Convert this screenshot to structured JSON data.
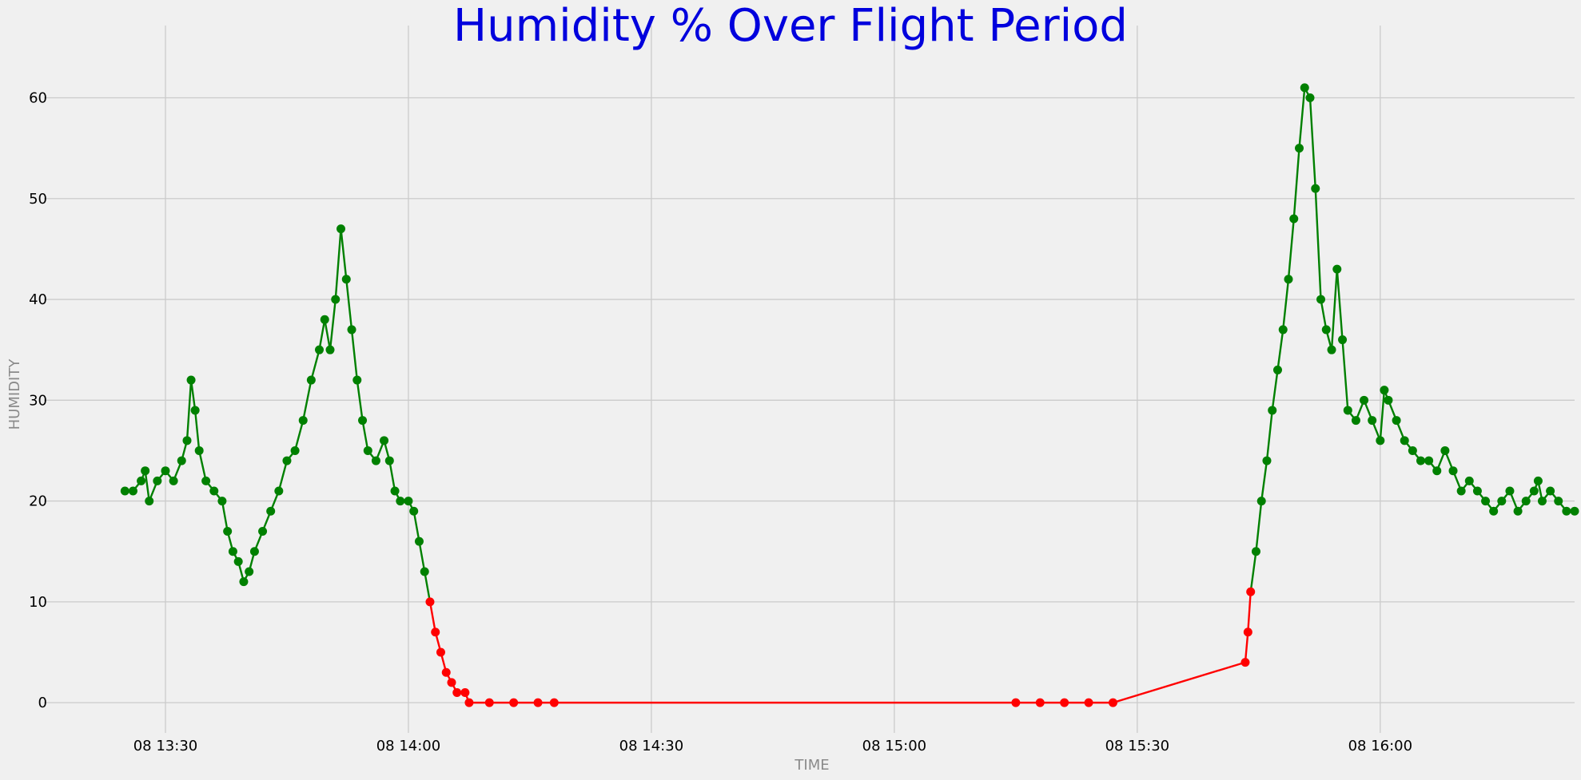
{
  "chart_data": {
    "type": "line",
    "title": "Humidity % Over Flight Period",
    "xlabel": "TIME",
    "ylabel": "HUMIDITY",
    "x_unit": "minutes",
    "xlim": [
      "08 13:15",
      "08 16:24"
    ],
    "ylim": [
      -3,
      64
    ],
    "x_ticks": [
      "08 13:30",
      "08 14:00",
      "08 14:30",
      "08 15:00",
      "08 15:30",
      "08 16:00"
    ],
    "y_ticks": [
      0,
      10,
      20,
      30,
      40,
      50,
      60
    ],
    "grid": true,
    "marker_colors": {
      "high": "#008000",
      "low": "#ff0000"
    },
    "line_color": "#ff0000",
    "low_threshold": 12,
    "series": [
      {
        "points": [
          [
            "08 13:25:00",
            21
          ],
          [
            "08 13:26:00",
            21
          ],
          [
            "08 13:27:00",
            22
          ],
          [
            "08 13:27:30",
            23
          ],
          [
            "08 13:28:00",
            20
          ],
          [
            "08 13:29:00",
            22
          ],
          [
            "08 13:30:00",
            23
          ],
          [
            "08 13:31:00",
            22
          ],
          [
            "08 13:32:00",
            24
          ],
          [
            "08 13:32:40",
            26
          ],
          [
            "08 13:33:10",
            32
          ],
          [
            "08 13:33:40",
            29
          ],
          [
            "08 13:34:10",
            25
          ],
          [
            "08 13:35:00",
            22
          ],
          [
            "08 13:36:00",
            21
          ],
          [
            "08 13:37:00",
            20
          ],
          [
            "08 13:37:40",
            17
          ],
          [
            "08 13:38:20",
            15
          ],
          [
            "08 13:39:00",
            14
          ],
          [
            "08 13:39:40",
            12
          ],
          [
            "08 13:40:20",
            13
          ],
          [
            "08 13:41:00",
            15
          ],
          [
            "08 13:42:00",
            17
          ],
          [
            "08 13:43:00",
            19
          ],
          [
            "08 13:44:00",
            21
          ],
          [
            "08 13:45:00",
            24
          ],
          [
            "08 13:46:00",
            25
          ],
          [
            "08 13:47:00",
            28
          ],
          [
            "08 13:48:00",
            32
          ],
          [
            "08 13:49:00",
            35
          ],
          [
            "08 13:49:40",
            38
          ],
          [
            "08 13:50:20",
            35
          ],
          [
            "08 13:51:00",
            40
          ],
          [
            "08 13:51:40",
            47
          ],
          [
            "08 13:52:20",
            42
          ],
          [
            "08 13:53:00",
            37
          ],
          [
            "08 13:53:40",
            32
          ],
          [
            "08 13:54:20",
            28
          ],
          [
            "08 13:55:00",
            25
          ],
          [
            "08 13:56:00",
            24
          ],
          [
            "08 13:57:00",
            26
          ],
          [
            "08 13:57:40",
            24
          ],
          [
            "08 13:58:20",
            21
          ],
          [
            "08 13:59:00",
            20
          ],
          [
            "08 14:00:00",
            20
          ],
          [
            "08 14:00:40",
            19
          ],
          [
            "08 14:01:20",
            16
          ],
          [
            "08 14:02:00",
            13
          ],
          [
            "08 14:02:40",
            10
          ],
          [
            "08 14:03:20",
            7
          ],
          [
            "08 14:04:00",
            5
          ],
          [
            "08 14:04:40",
            3
          ],
          [
            "08 14:05:20",
            2
          ],
          [
            "08 14:06:00",
            1
          ],
          [
            "08 14:07:00",
            1
          ],
          [
            "08 14:07:30",
            0
          ],
          [
            "08 14:10:00",
            0
          ],
          [
            "08 14:13:00",
            0
          ],
          [
            "08 14:16:00",
            0
          ],
          [
            "08 14:18:00",
            0
          ],
          [
            "08 15:15:00",
            0
          ],
          [
            "08 15:18:00",
            0
          ],
          [
            "08 15:21:00",
            0
          ],
          [
            "08 15:24:00",
            0
          ],
          [
            "08 15:27:00",
            0
          ],
          [
            "08 15:43:20",
            4
          ],
          [
            "08 15:43:40",
            7
          ],
          [
            "08 15:44:00",
            11
          ],
          [
            "08 15:44:40",
            15
          ],
          [
            "08 15:45:20",
            20
          ],
          [
            "08 15:46:00",
            24
          ],
          [
            "08 15:46:40",
            29
          ],
          [
            "08 15:47:20",
            33
          ],
          [
            "08 15:48:00",
            37
          ],
          [
            "08 15:48:40",
            42
          ],
          [
            "08 15:49:20",
            48
          ],
          [
            "08 15:50:00",
            55
          ],
          [
            "08 15:50:40",
            61
          ],
          [
            "08 15:51:20",
            60
          ],
          [
            "08 15:52:00",
            51
          ],
          [
            "08 15:52:40",
            40
          ],
          [
            "08 15:53:20",
            37
          ],
          [
            "08 15:54:00",
            35
          ],
          [
            "08 15:54:40",
            43
          ],
          [
            "08 15:55:20",
            36
          ],
          [
            "08 15:56:00",
            29
          ],
          [
            "08 15:57:00",
            28
          ],
          [
            "08 15:58:00",
            30
          ],
          [
            "08 15:59:00",
            28
          ],
          [
            "08 16:00:00",
            26
          ],
          [
            "08 16:00:30",
            31
          ],
          [
            "08 16:01:00",
            30
          ],
          [
            "08 16:02:00",
            28
          ],
          [
            "08 16:03:00",
            26
          ],
          [
            "08 16:04:00",
            25
          ],
          [
            "08 16:05:00",
            24
          ],
          [
            "08 16:06:00",
            24
          ],
          [
            "08 16:07:00",
            23
          ],
          [
            "08 16:08:00",
            25
          ],
          [
            "08 16:09:00",
            23
          ],
          [
            "08 16:10:00",
            21
          ],
          [
            "08 16:11:00",
            22
          ],
          [
            "08 16:12:00",
            21
          ],
          [
            "08 16:13:00",
            20
          ],
          [
            "08 16:14:00",
            19
          ],
          [
            "08 16:15:00",
            20
          ],
          [
            "08 16:16:00",
            21
          ],
          [
            "08 16:17:00",
            19
          ],
          [
            "08 16:18:00",
            20
          ],
          [
            "08 16:19:00",
            21
          ],
          [
            "08 16:19:30",
            22
          ],
          [
            "08 16:20:00",
            20
          ],
          [
            "08 16:21:00",
            21
          ],
          [
            "08 16:22:00",
            20
          ],
          [
            "08 16:23:00",
            19
          ],
          [
            "08 16:24:00",
            19
          ]
        ]
      }
    ]
  }
}
